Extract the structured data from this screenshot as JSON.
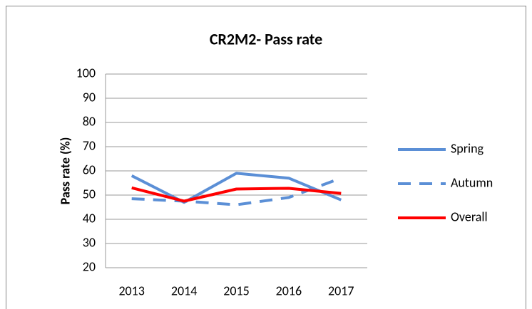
{
  "chart_data": {
    "type": "line",
    "title": "CR2M2- Pass rate",
    "y_label": "Pass rate (%)",
    "categories": [
      "2013",
      "2014",
      "2015",
      "2016",
      "2017"
    ],
    "series": [
      {
        "name": "Spring",
        "color": "#5b8fd6",
        "values": [
          58,
          47,
          59,
          57,
          48
        ]
      },
      {
        "name": "Autumn",
        "color": "#5b8fd6",
        "dashed": true,
        "values": [
          48.5,
          47.5,
          46,
          49,
          57
        ]
      },
      {
        "name": "Overall",
        "color": "#ff0000",
        "values": [
          53,
          47.5,
          52.5,
          52.8,
          50.7
        ]
      }
    ],
    "ylim": [
      20,
      100
    ],
    "yticks": [
      20,
      30,
      40,
      50,
      60,
      70,
      80,
      90,
      100
    ],
    "grid": true,
    "legend": "right"
  }
}
